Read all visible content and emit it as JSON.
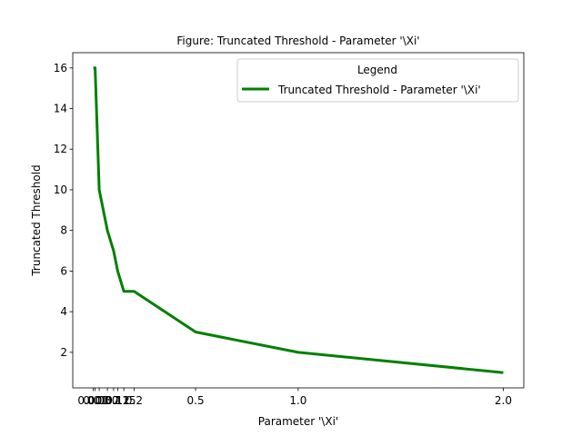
{
  "chart_data": {
    "type": "line",
    "title": "Figure: Truncated Threshold - Parameter '\\Xi'",
    "xlabel": "Parameter '\\Xi'",
    "ylabel": "Truncated Threshold",
    "x": [
      0.001,
      0.01,
      0.03,
      0.07,
      0.1,
      0.12,
      0.15,
      0.2,
      0.5,
      1.0,
      2.0
    ],
    "series": [
      {
        "name": "Truncated Threshold - Parameter '\\Xi'",
        "color": "#008000",
        "values": [
          16,
          16,
          10,
          8,
          7,
          6,
          5,
          5,
          3,
          2,
          1
        ]
      }
    ],
    "xticks": [
      0.001,
      0.01,
      0.03,
      0.07,
      0.1,
      0.12,
      0.15,
      0.2,
      0.5,
      1.0,
      2.0
    ],
    "xtick_labels": [
      "0.001",
      "0.01",
      "0.03",
      "0.07",
      "0.1",
      "0.12",
      "0.15",
      "0.2",
      "0.5",
      "1.0",
      "2.0"
    ],
    "yticks": [
      2,
      4,
      6,
      8,
      10,
      12,
      14,
      16
    ],
    "ytick_labels": [
      "2",
      "4",
      "6",
      "8",
      "10",
      "12",
      "14",
      "16"
    ],
    "xlim": [
      -0.099,
      2.1
    ],
    "ylim": [
      0.25,
      16.75
    ],
    "grid": false,
    "legend": {
      "title": "Legend",
      "placement": "top-right"
    }
  }
}
